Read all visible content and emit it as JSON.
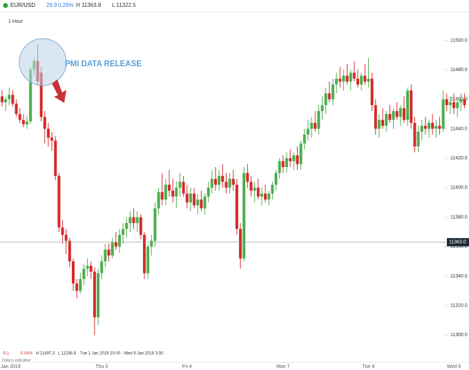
{
  "header": {
    "symbol": "EUR/USD",
    "change": "29.9",
    "change_pct": "0.26%",
    "high": "H 11363.8",
    "low": "L 11322.5",
    "timeframe": "1 Hour"
  },
  "footer": {
    "change": "-5.1",
    "change_pct": "-0.04%",
    "high": "H 11497.3",
    "low": "L 11298.8",
    "range": "Tue 1 Jan 2019 20:00 - Wed 9 Jan 2019 3:00",
    "note": "Data is indicative"
  },
  "chart_data": {
    "type": "candlestick",
    "up_color": "#4cae4c",
    "down_color": "#d42a2a",
    "annotation": "PMI DATA RELEASE",
    "price_line": {
      "value": 11363,
      "label": "11363.0"
    },
    "ylim": [
      11288,
      11518
    ],
    "yticks": [
      {
        "value": 11300,
        "label": "11300.0"
      },
      {
        "value": 11320,
        "label": "11320.0"
      },
      {
        "value": 11340,
        "label": "11340.0"
      },
      {
        "value": 11360,
        "label": "11360.0"
      },
      {
        "value": 11380,
        "label": "11380.0"
      },
      {
        "value": 11400,
        "label": "11400.0"
      },
      {
        "value": 11420,
        "label": "11420.0"
      },
      {
        "value": 11440,
        "label": "11440.0"
      },
      {
        "value": 11460,
        "label": "11460.0"
      },
      {
        "value": 11480,
        "label": "11480.0"
      },
      {
        "value": 11500,
        "label": "11500.0"
      }
    ],
    "categories": [
      "Jan 2019",
      null,
      null,
      null,
      null,
      null,
      null,
      null,
      null,
      null,
      null,
      null,
      null,
      null,
      null,
      null,
      null,
      null,
      null,
      null,
      null,
      null,
      null,
      null,
      null,
      null,
      null,
      null,
      "Thu 3",
      null,
      null,
      null,
      null,
      null,
      null,
      null,
      null,
      null,
      null,
      null,
      null,
      null,
      null,
      null,
      null,
      null,
      null,
      null,
      null,
      null,
      null,
      null,
      "Fri 4",
      null,
      null,
      null,
      null,
      null,
      null,
      null,
      null,
      null,
      null,
      null,
      null,
      null,
      null,
      null,
      null,
      null,
      null,
      null,
      null,
      null,
      null,
      null,
      null,
      null,
      null,
      "Mon 7",
      null,
      null,
      null,
      null,
      null,
      null,
      null,
      null,
      null,
      null,
      null,
      null,
      null,
      null,
      null,
      null,
      null,
      null,
      null,
      null,
      null,
      null,
      null,
      "Tue 8",
      null,
      null,
      null,
      null,
      null,
      null,
      null,
      null,
      null,
      null,
      null,
      null,
      null,
      null,
      null,
      null,
      null,
      null,
      null,
      null,
      null,
      null,
      null,
      "Wed 9",
      null,
      null,
      null
    ],
    "values": [
      [
        11462,
        11466,
        11455,
        11458
      ],
      [
        11458,
        11462,
        11452,
        11460
      ],
      [
        11460,
        11468,
        11456,
        11463
      ],
      [
        11463,
        11466,
        11455,
        11457
      ],
      [
        11457,
        11460,
        11448,
        11450
      ],
      [
        11450,
        11454,
        11444,
        11446
      ],
      [
        11446,
        11450,
        11441,
        11443
      ],
      [
        11443,
        11449,
        11440,
        11445
      ],
      [
        11445,
        11482,
        11443,
        11480
      ],
      [
        11480,
        11488,
        11476,
        11486
      ],
      [
        11486,
        11497,
        11470,
        11472
      ],
      [
        11478,
        11482,
        11445,
        11448
      ],
      [
        11448,
        11452,
        11430,
        11440
      ],
      [
        11440,
        11444,
        11428,
        11434
      ],
      [
        11434,
        11438,
        11425,
        11432
      ],
      [
        11432,
        11435,
        11405,
        11408
      ],
      [
        11408,
        11410,
        11370,
        11373
      ],
      [
        11373,
        11378,
        11362,
        11368
      ],
      [
        11368,
        11372,
        11355,
        11364
      ],
      [
        11364,
        11366,
        11346,
        11350
      ],
      [
        11350,
        11352,
        11330,
        11335
      ],
      [
        11335,
        11338,
        11325,
        11330
      ],
      [
        11330,
        11342,
        11328,
        11338
      ],
      [
        11338,
        11348,
        11334,
        11345
      ],
      [
        11345,
        11352,
        11340,
        11347
      ],
      [
        11347,
        11350,
        11338,
        11343
      ],
      [
        11343,
        11346,
        11300,
        11312
      ],
      [
        11312,
        11345,
        11307,
        11342
      ],
      [
        11342,
        11354,
        11338,
        11350
      ],
      [
        11350,
        11362,
        11346,
        11358
      ],
      [
        11358,
        11362,
        11350,
        11354
      ],
      [
        11354,
        11366,
        11352,
        11363
      ],
      [
        11363,
        11370,
        11358,
        11360
      ],
      [
        11360,
        11372,
        11356,
        11368
      ],
      [
        11368,
        11376,
        11362,
        11372
      ],
      [
        11372,
        11380,
        11366,
        11376
      ],
      [
        11376,
        11384,
        11370,
        11380
      ],
      [
        11380,
        11386,
        11372,
        11376
      ],
      [
        11376,
        11384,
        11370,
        11380
      ],
      [
        11380,
        11382,
        11365,
        11368
      ],
      [
        11368,
        11370,
        11338,
        11342
      ],
      [
        11342,
        11362,
        11338,
        11360
      ],
      [
        11360,
        11368,
        11354,
        11364
      ],
      [
        11364,
        11390,
        11360,
        11386
      ],
      [
        11386,
        11400,
        11382,
        11397
      ],
      [
        11397,
        11410,
        11388,
        11392
      ],
      [
        11392,
        11406,
        11388,
        11402
      ],
      [
        11402,
        11412,
        11394,
        11398
      ],
      [
        11398,
        11406,
        11390,
        11394
      ],
      [
        11394,
        11404,
        11386,
        11400
      ],
      [
        11400,
        11410,
        11394,
        11404
      ],
      [
        11404,
        11408,
        11394,
        11396
      ],
      [
        11396,
        11402,
        11386,
        11390
      ],
      [
        11390,
        11400,
        11384,
        11396
      ],
      [
        11396,
        11400,
        11386,
        11388
      ],
      [
        11388,
        11396,
        11382,
        11392
      ],
      [
        11392,
        11398,
        11384,
        11386
      ],
      [
        11386,
        11396,
        11382,
        11394
      ],
      [
        11394,
        11404,
        11390,
        11400
      ],
      [
        11400,
        11412,
        11396,
        11406
      ],
      [
        11406,
        11414,
        11398,
        11402
      ],
      [
        11402,
        11412,
        11398,
        11408
      ],
      [
        11408,
        11416,
        11400,
        11404
      ],
      [
        11404,
        11410,
        11396,
        11400
      ],
      [
        11400,
        11410,
        11396,
        11406
      ],
      [
        11406,
        11412,
        11398,
        11402
      ],
      [
        11402,
        11406,
        11368,
        11372
      ],
      [
        11372,
        11376,
        11345,
        11352
      ],
      [
        11352,
        11414,
        11350,
        11410
      ],
      [
        11410,
        11416,
        11400,
        11404
      ],
      [
        11404,
        11408,
        11394,
        11398
      ],
      [
        11398,
        11404,
        11390,
        11400
      ],
      [
        11400,
        11406,
        11392,
        11394
      ],
      [
        11394,
        11400,
        11388,
        11396
      ],
      [
        11396,
        11402,
        11390,
        11392
      ],
      [
        11392,
        11398,
        11388,
        11396
      ],
      [
        11396,
        11404,
        11392,
        11402
      ],
      [
        11402,
        11412,
        11398,
        11410
      ],
      [
        11410,
        11420,
        11406,
        11418
      ],
      [
        11418,
        11422,
        11410,
        11414
      ],
      [
        11414,
        11424,
        11410,
        11420
      ],
      [
        11420,
        11426,
        11414,
        11418
      ],
      [
        11418,
        11424,
        11412,
        11422
      ],
      [
        11422,
        11428,
        11412,
        11416
      ],
      [
        11416,
        11432,
        11412,
        11430
      ],
      [
        11430,
        11440,
        11426,
        11436
      ],
      [
        11436,
        11446,
        11432,
        11440
      ],
      [
        11440,
        11448,
        11434,
        11444
      ],
      [
        11444,
        11452,
        11438,
        11440
      ],
      [
        11440,
        11456,
        11436,
        11452
      ],
      [
        11452,
        11462,
        11446,
        11456
      ],
      [
        11456,
        11468,
        11450,
        11464
      ],
      [
        11464,
        11472,
        11458,
        11460
      ],
      [
        11460,
        11474,
        11456,
        11470
      ],
      [
        11470,
        11478,
        11464,
        11474
      ],
      [
        11474,
        11482,
        11468,
        11472
      ],
      [
        11472,
        11480,
        11466,
        11476
      ],
      [
        11476,
        11484,
        11470,
        11472
      ],
      [
        11472,
        11480,
        11466,
        11478
      ],
      [
        11478,
        11486,
        11472,
        11474
      ],
      [
        11474,
        11480,
        11468,
        11470
      ],
      [
        11470,
        11478,
        11466,
        11476
      ],
      [
        11476,
        11484,
        11470,
        11472
      ],
      [
        11472,
        11488,
        11468,
        11474
      ],
      [
        11474,
        11478,
        11452,
        11456
      ],
      [
        11456,
        11460,
        11436,
        11440
      ],
      [
        11440,
        11450,
        11434,
        11446
      ],
      [
        11446,
        11454,
        11440,
        11442
      ],
      [
        11442,
        11452,
        11438,
        11450
      ],
      [
        11450,
        11456,
        11444,
        11446
      ],
      [
        11446,
        11454,
        11440,
        11452
      ],
      [
        11452,
        11458,
        11446,
        11448
      ],
      [
        11448,
        11456,
        11442,
        11454
      ],
      [
        11454,
        11462,
        11444,
        11446
      ],
      [
        11446,
        11468,
        11442,
        11466
      ],
      [
        11466,
        11470,
        11440,
        11444
      ],
      [
        11444,
        11448,
        11424,
        11428
      ],
      [
        11428,
        11442,
        11424,
        11438
      ],
      [
        11438,
        11446,
        11432,
        11442
      ],
      [
        11442,
        11448,
        11436,
        11440
      ],
      [
        11440,
        11446,
        11434,
        11444
      ],
      [
        11444,
        11450,
        11436,
        11440
      ],
      [
        11440,
        11446,
        11434,
        11442
      ],
      [
        11442,
        11448,
        11436,
        11440
      ],
      [
        11440,
        11466,
        11438,
        11460
      ],
      [
        11460,
        11464,
        11452,
        11456
      ],
      [
        11456,
        11462,
        11450,
        11458
      ],
      [
        11458,
        11464,
        11450,
        11454
      ],
      [
        11454,
        11460,
        11448,
        11458
      ],
      [
        11458,
        11464,
        11452,
        11460
      ],
      [
        11460,
        11464,
        11454,
        11456
      ]
    ]
  }
}
